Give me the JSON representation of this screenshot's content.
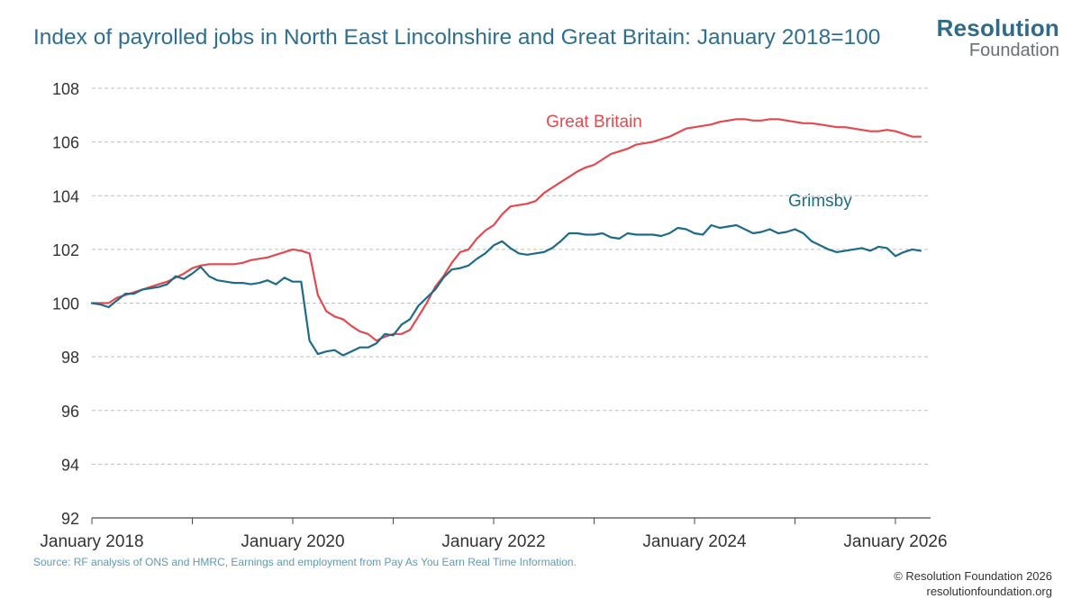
{
  "header": {
    "title": "Index of payrolled jobs in North East Lincolnshire  and Great Britain: January 2018=100",
    "logo_line1": "Resolution",
    "logo_line2": "Foundation"
  },
  "footer": {
    "source": "Source: RF analysis of ONS and HMRC, Earnings and employment from Pay As You Earn Real Time Information.",
    "copyright": "© Resolution Foundation 2026",
    "website": "resolutionfoundation.org"
  },
  "colors": {
    "great_britain": "#e24a4f",
    "grimsby": "#1d6b87",
    "grid": "#bfbfbf",
    "axis": "#4a4a4a",
    "title": "#2e6f8e"
  },
  "chart_data": {
    "type": "line",
    "title": "Index of payrolled jobs in North East Lincolnshire  and Great Britain: January 2018=100",
    "xlabel": "",
    "ylabel": "",
    "ylim": [
      92,
      108
    ],
    "yticks": [
      92,
      94,
      96,
      98,
      100,
      102,
      104,
      106,
      108
    ],
    "x_start": "2018-01",
    "xtick_labels": [
      "January 2018",
      "January 2020",
      "January 2022",
      "January 2024",
      "January 2026"
    ],
    "grid": true,
    "series": [
      {
        "name": "Great Britain",
        "color": "#e24a4f",
        "values": [
          100.0,
          100.0,
          100.0,
          100.2,
          100.3,
          100.4,
          100.5,
          100.6,
          100.7,
          100.8,
          100.95,
          101.1,
          101.3,
          101.4,
          101.45,
          101.45,
          101.45,
          101.45,
          101.5,
          101.6,
          101.65,
          101.7,
          101.8,
          101.9,
          102.0,
          101.95,
          101.85,
          100.3,
          99.7,
          99.5,
          99.4,
          99.15,
          98.95,
          98.85,
          98.6,
          98.75,
          98.85,
          98.85,
          99.0,
          99.5,
          100.0,
          100.6,
          101.0,
          101.5,
          101.9,
          102.0,
          102.4,
          102.7,
          102.9,
          103.3,
          103.6,
          103.65,
          103.7,
          103.8,
          104.1,
          104.3,
          104.5,
          104.7,
          104.9,
          105.05,
          105.15,
          105.35,
          105.55,
          105.65,
          105.75,
          105.9,
          105.95,
          106.0,
          106.1,
          106.2,
          106.35,
          106.5,
          106.55,
          106.6,
          106.65,
          106.75,
          106.8,
          106.85,
          106.85,
          106.8,
          106.8,
          106.85,
          106.85,
          106.8,
          106.75,
          106.7,
          106.7,
          106.65,
          106.6,
          106.55,
          106.55,
          106.5,
          106.45,
          106.4,
          106.4,
          106.45,
          106.4,
          106.3,
          106.2,
          106.2
        ]
      },
      {
        "name": "Grimsby",
        "color": "#1d6b87",
        "values": [
          100.0,
          99.95,
          99.85,
          100.1,
          100.35,
          100.35,
          100.5,
          100.55,
          100.6,
          100.7,
          101.0,
          100.9,
          101.1,
          101.35,
          101.0,
          100.85,
          100.8,
          100.75,
          100.75,
          100.7,
          100.75,
          100.85,
          100.7,
          100.95,
          100.8,
          100.8,
          98.6,
          98.1,
          98.2,
          98.25,
          98.05,
          98.2,
          98.35,
          98.35,
          98.5,
          98.85,
          98.8,
          99.2,
          99.4,
          99.9,
          100.2,
          100.5,
          100.95,
          101.25,
          101.3,
          101.4,
          101.65,
          101.85,
          102.15,
          102.3,
          102.05,
          101.85,
          101.8,
          101.85,
          101.9,
          102.05,
          102.3,
          102.6,
          102.6,
          102.55,
          102.55,
          102.6,
          102.45,
          102.4,
          102.6,
          102.55,
          102.55,
          102.55,
          102.5,
          102.6,
          102.8,
          102.75,
          102.6,
          102.55,
          102.9,
          102.8,
          102.85,
          102.9,
          102.75,
          102.6,
          102.65,
          102.75,
          102.6,
          102.65,
          102.75,
          102.6,
          102.3,
          102.15,
          102.0,
          101.9,
          101.95,
          102.0,
          102.05,
          101.95,
          102.1,
          102.05,
          101.75,
          101.9,
          102.0,
          101.95
        ]
      }
    ],
    "annotations": [
      {
        "text": "Great Britain",
        "series": "Great Britain"
      },
      {
        "text": "Grimsby",
        "series": "Grimsby"
      }
    ]
  }
}
